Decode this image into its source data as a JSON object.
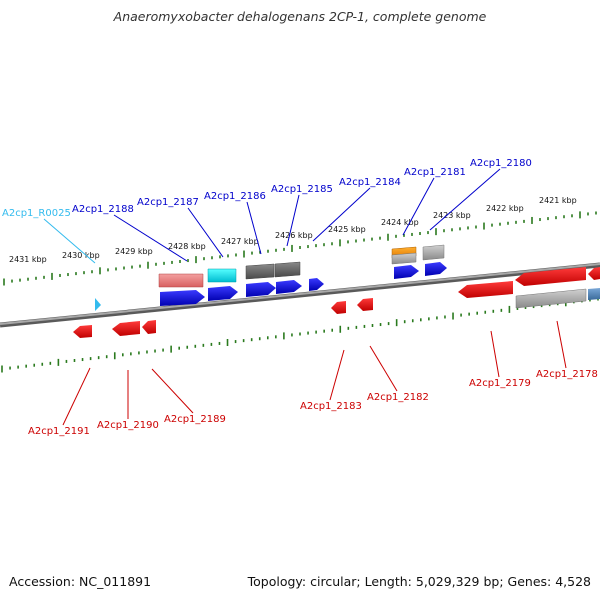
{
  "title": "Anaeromyxobacter dehalogenans 2CP-1, complete genome",
  "footer": {
    "accession": "Accession: NC_011891",
    "summary": "Topology: circular; Length: 5,029,329 bp; Genes: 4,528"
  },
  "colors": {
    "plus_label": "#0000cc",
    "minus_label": "#cc0000",
    "rna_label": "#33bbee",
    "backbone": "#808080",
    "tick": "#2a7a1e"
  },
  "kbp_ticks": [
    "2431 kbp",
    "2430 kbp",
    "2429 kbp",
    "2428 kbp",
    "2427 kbp",
    "2426 kbp",
    "2425 kbp",
    "2424 kbp",
    "2423 kbp",
    "2422 kbp",
    "2421 kbp"
  ],
  "plus_labels": [
    "A2cp1_R0025",
    "A2cp1_2188",
    "A2cp1_2187",
    "A2cp1_2186",
    "A2cp1_2185",
    "A2cp1_2184",
    "A2cp1_2181",
    "A2cp1_2180"
  ],
  "minus_labels": [
    "A2cp1_2191",
    "A2cp1_2190",
    "A2cp1_2189",
    "A2cp1_2183",
    "A2cp1_2182",
    "A2cp1_2179",
    "A2cp1_2178"
  ]
}
